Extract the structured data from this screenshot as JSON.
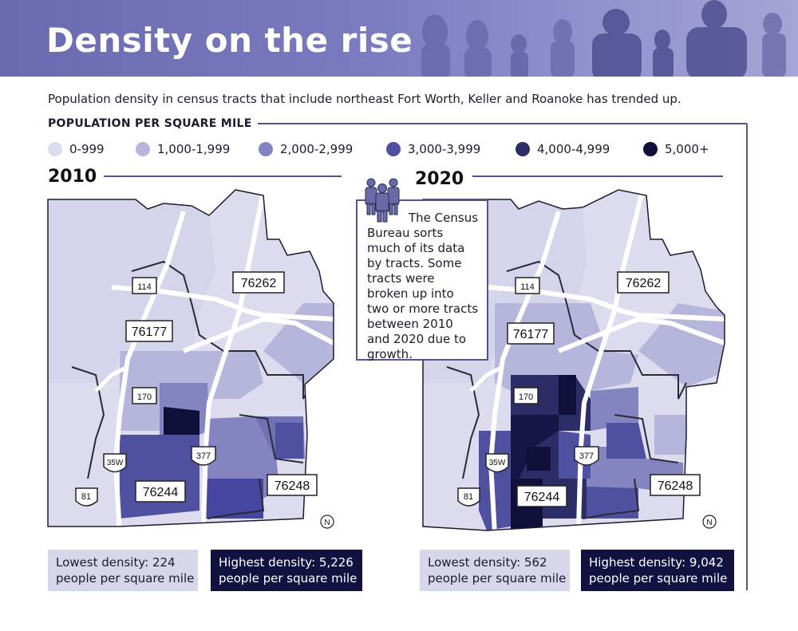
{
  "banner": {
    "title": "Density on the rise"
  },
  "subtitle": "Population density in census tracts that include northeast Fort Worth, Keller and Roanoke has trended up.",
  "legend": {
    "title": "POPULATION PER SQUARE MILE",
    "items": [
      {
        "label": "0-999",
        "color": "#dcdcee"
      },
      {
        "label": "1,000-1,999",
        "color": "#b6b6dc"
      },
      {
        "label": "2,000-2,999",
        "color": "#8484c0"
      },
      {
        "label": "3,000-3,999",
        "color": "#5050a0"
      },
      {
        "label": "4,000-4,999",
        "color": "#2c2c66"
      },
      {
        "label": "5,000+",
        "color": "#0f0f3a"
      }
    ]
  },
  "maps": [
    {
      "year": "2010",
      "lowest": {
        "line1": "Lowest density: 224",
        "line2": "people per square mile"
      },
      "highest": {
        "line1": "Highest density: 5,226",
        "line2": "people per square mile"
      },
      "zip_labels": [
        "76262",
        "76177",
        "76244",
        "76248"
      ],
      "highway_labels": [
        "114",
        "170",
        "377",
        "35W",
        "81"
      ],
      "north": "N"
    },
    {
      "year": "2020",
      "lowest": {
        "line1": "Lowest density: 562",
        "line2": "people per square mile"
      },
      "highest": {
        "line1": "Highest density: 9,042",
        "line2": "people per square mile"
      },
      "zip_labels": [
        "76262",
        "76177",
        "76244",
        "76248"
      ],
      "highway_labels": [
        "114",
        "170",
        "377",
        "35W",
        "81"
      ],
      "north": "N"
    }
  ],
  "callout": "The Census Bureau sorts much of its data by tracts. Some tracts were broken up into two or more tracts between 2010 and 2020 due to growth."
}
